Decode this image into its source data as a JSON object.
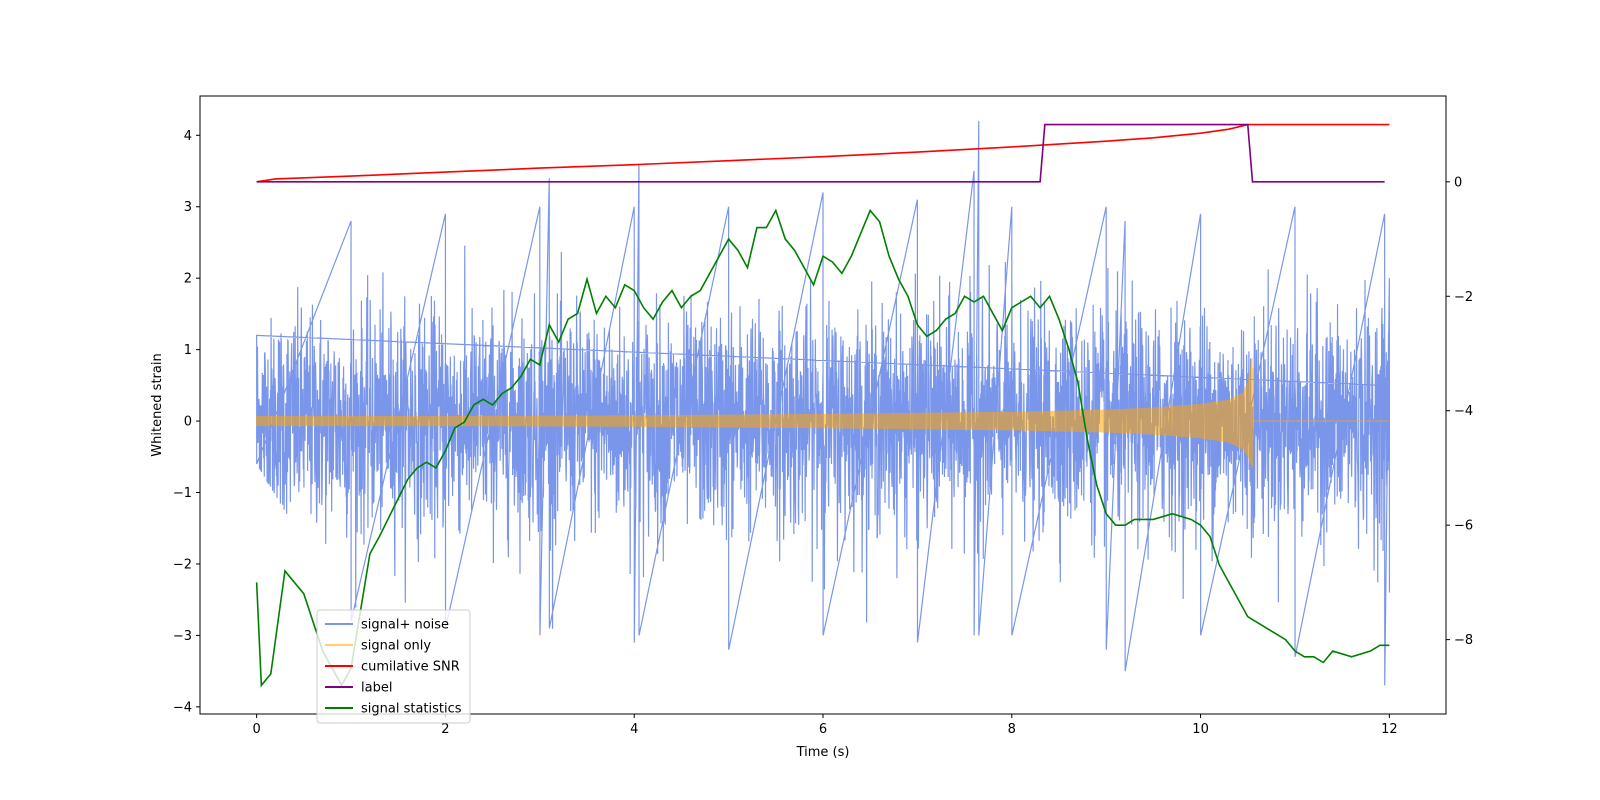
{
  "chart_data": {
    "type": "line",
    "xlabel": "Time (s)",
    "ylabel": "Whitened strain",
    "xlim": [
      -0.6,
      12.6
    ],
    "ylim": [
      -4.1,
      4.55
    ],
    "y2lim": [
      -9.3,
      1.5
    ],
    "xticks": [
      0,
      2,
      4,
      6,
      8,
      10,
      12
    ],
    "yticks": [
      -4,
      -3,
      -2,
      -1,
      0,
      1,
      2,
      3,
      4
    ],
    "y2ticks": [
      -8,
      -6,
      -4,
      -2,
      0
    ],
    "grid": false,
    "legend_position": "lower-left",
    "series": [
      {
        "name": "signal+ noise",
        "axis": "left",
        "color": "#4169e1",
        "description": "dense noise around 0",
        "envelope_x": [
          0,
          1,
          2,
          3,
          3.1,
          4,
          4.05,
          5,
          6,
          7,
          7.6,
          7.65,
          8,
          9,
          9.2,
          10,
          11,
          11.95,
          12
        ],
        "envelope_upper": [
          1.2,
          2.8,
          2.9,
          3.0,
          3.4,
          3.0,
          3.6,
          3.0,
          3.2,
          3.1,
          3.5,
          4.2,
          3.0,
          3.0,
          2.8,
          2.9,
          3.0,
          2.9,
          2.0
        ],
        "envelope_lower": [
          -0.6,
          -2.8,
          -2.9,
          -3.0,
          -2.9,
          -3.1,
          -3.0,
          -3.2,
          -3.0,
          -3.1,
          -3.0,
          -3.0,
          -3.0,
          -3.2,
          -3.5,
          -3.0,
          -3.3,
          -3.7,
          -2.4
        ]
      },
      {
        "name": "signal only",
        "axis": "left",
        "color": "#ffa500",
        "description": "chirp envelope ending at 10.55 s",
        "x": [
          0,
          2,
          4,
          6,
          8,
          9,
          9.5,
          10,
          10.3,
          10.45,
          10.5,
          10.55,
          10.56,
          12
        ],
        "amp_upper": [
          0.07,
          0.07,
          0.08,
          0.1,
          0.13,
          0.16,
          0.19,
          0.24,
          0.3,
          0.4,
          0.55,
          0.93,
          0.0,
          0.0
        ],
        "amp_lower": [
          -0.07,
          -0.07,
          -0.08,
          -0.1,
          -0.13,
          -0.16,
          -0.19,
          -0.24,
          -0.3,
          -0.4,
          -0.5,
          -0.65,
          0.0,
          0.0
        ]
      },
      {
        "name": "cumilative SNR",
        "axis": "right",
        "color": "#ff0000",
        "x": [
          0,
          0.2,
          1,
          2,
          3,
          4,
          5,
          6,
          7,
          8,
          8.5,
          9,
          9.5,
          10,
          10.3,
          10.5,
          10.55,
          12
        ],
        "values": [
          0.0,
          0.05,
          0.1,
          0.17,
          0.24,
          0.3,
          0.37,
          0.44,
          0.52,
          0.61,
          0.66,
          0.71,
          0.77,
          0.85,
          0.92,
          1.0,
          1.0,
          1.0
        ]
      },
      {
        "name": "label",
        "axis": "right",
        "color": "#800080",
        "x": [
          0,
          8.3,
          8.35,
          10.5,
          10.55,
          11.95
        ],
        "values": [
          0,
          0,
          1,
          1,
          0,
          0
        ]
      },
      {
        "name": "signal statistics",
        "axis": "right",
        "color": "#008000",
        "x": [
          0,
          0.05,
          0.15,
          0.3,
          0.5,
          0.7,
          0.9,
          1.0,
          1.1,
          1.2,
          1.3,
          1.45,
          1.6,
          1.7,
          1.8,
          1.9,
          2.0,
          2.1,
          2.2,
          2.3,
          2.4,
          2.5,
          2.6,
          2.7,
          2.8,
          2.9,
          3.0,
          3.1,
          3.2,
          3.3,
          3.4,
          3.5,
          3.6,
          3.7,
          3.8,
          3.9,
          4.0,
          4.1,
          4.2,
          4.3,
          4.4,
          4.5,
          4.6,
          4.7,
          4.8,
          4.9,
          5.0,
          5.1,
          5.2,
          5.3,
          5.4,
          5.5,
          5.6,
          5.7,
          5.8,
          5.9,
          6.0,
          6.1,
          6.2,
          6.3,
          6.4,
          6.5,
          6.6,
          6.7,
          6.8,
          6.9,
          7.0,
          7.1,
          7.2,
          7.3,
          7.4,
          7.5,
          7.6,
          7.7,
          7.8,
          7.9,
          8.0,
          8.1,
          8.2,
          8.3,
          8.4,
          8.5,
          8.6,
          8.7,
          8.8,
          8.9,
          9.0,
          9.1,
          9.2,
          9.3,
          9.5,
          9.7,
          9.9,
          10.0,
          10.1,
          10.2,
          10.3,
          10.5,
          10.7,
          10.9,
          11.0,
          11.1,
          11.2,
          11.3,
          11.4,
          11.6,
          11.8,
          11.9,
          12.0
        ],
        "values": [
          -7.0,
          -8.8,
          -8.6,
          -6.8,
          -7.2,
          -8.2,
          -8.8,
          -8.5,
          -7.5,
          -6.5,
          -6.2,
          -5.7,
          -5.2,
          -5.0,
          -4.9,
          -5.0,
          -4.7,
          -4.3,
          -4.2,
          -3.9,
          -3.8,
          -3.9,
          -3.7,
          -3.6,
          -3.4,
          -3.1,
          -3.2,
          -2.5,
          -2.8,
          -2.4,
          -2.3,
          -1.7,
          -2.3,
          -2.0,
          -2.2,
          -1.8,
          -1.9,
          -2.2,
          -2.4,
          -2.1,
          -1.9,
          -2.2,
          -2.0,
          -1.9,
          -1.6,
          -1.3,
          -1.0,
          -1.2,
          -1.5,
          -0.8,
          -0.8,
          -0.5,
          -1.0,
          -1.2,
          -1.5,
          -1.8,
          -1.3,
          -1.4,
          -1.6,
          -1.3,
          -0.9,
          -0.5,
          -0.7,
          -1.3,
          -1.7,
          -2.0,
          -2.5,
          -2.7,
          -2.6,
          -2.4,
          -2.3,
          -2.0,
          -2.1,
          -2.0,
          -2.3,
          -2.6,
          -2.2,
          -2.1,
          -2.0,
          -2.2,
          -2.0,
          -2.4,
          -2.9,
          -3.5,
          -4.5,
          -5.3,
          -5.8,
          -6.0,
          -6.0,
          -5.9,
          -5.9,
          -5.8,
          -5.9,
          -6.0,
          -6.2,
          -6.7,
          -7.0,
          -7.6,
          -7.8,
          -8.0,
          -8.2,
          -8.3,
          -8.3,
          -8.4,
          -8.2,
          -8.3,
          -8.2,
          -8.1,
          -8.1
        ]
      }
    ]
  }
}
